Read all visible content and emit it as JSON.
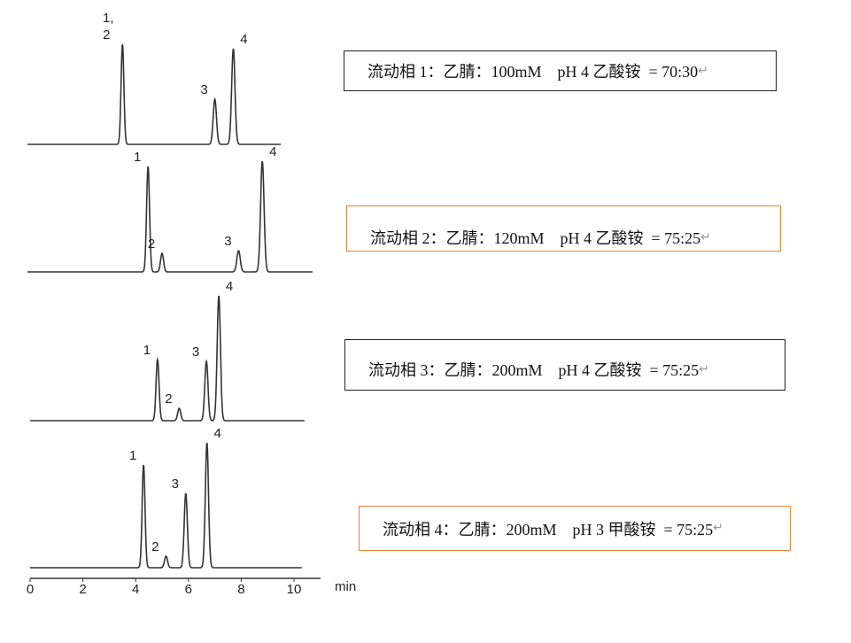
{
  "chart_data": {
    "type": "line",
    "xlabel": "min",
    "xlim": [
      0,
      10.5
    ],
    "xticks": [
      "0",
      "2",
      "4",
      "6",
      "8",
      "10"
    ],
    "grid": false,
    "traces": [
      {
        "condition": "流动相 1：乙腈：100mM    pH 4 乙酸铵  = 70:30",
        "border": "#222222",
        "x_range": [
          -0.1,
          9.5
        ],
        "peaks": [
          {
            "label": "1,\n2",
            "t": 3.5,
            "h": 113
          },
          {
            "label": "3",
            "t": 7.0,
            "h": 51
          },
          {
            "label": "4",
            "t": 7.7,
            "h": 108
          }
        ]
      },
      {
        "condition": "流动相 2：乙腈：120mM    pH 4 乙酸铵  = 75:25",
        "border": "#e8843a",
        "x_range": [
          -0.1,
          10.7
        ],
        "peaks": [
          {
            "label": "1",
            "t": 4.47,
            "h": 119
          },
          {
            "label": "2",
            "t": 5.0,
            "h": 21
          },
          {
            "label": "3",
            "t": 7.9,
            "h": 24
          },
          {
            "label": "4",
            "t": 8.8,
            "h": 125
          }
        ]
      },
      {
        "condition": "流动相 3：乙腈：200mM    pH 4 乙酸铵  = 75:25",
        "border": "#222222",
        "x_range": [
          0.0,
          10.4
        ],
        "peaks": [
          {
            "label": "1",
            "t": 4.83,
            "h": 69
          },
          {
            "label": "2",
            "t": 5.65,
            "h": 14
          },
          {
            "label": "3",
            "t": 6.68,
            "h": 67
          },
          {
            "label": "4",
            "t": 7.15,
            "h": 141
          }
        ]
      },
      {
        "condition": "流动相 4：乙腈：200mM    pH 3 甲酸铵  = 75:25",
        "border": "#e8843a",
        "x_range": [
          0.0,
          10.3
        ],
        "peaks": [
          {
            "label": "1",
            "t": 4.3,
            "h": 116
          },
          {
            "label": "2",
            "t": 5.15,
            "h": 13
          },
          {
            "label": "3",
            "t": 5.9,
            "h": 84
          },
          {
            "label": "4",
            "t": 6.7,
            "h": 141
          }
        ]
      }
    ]
  },
  "return_mark": "↵"
}
